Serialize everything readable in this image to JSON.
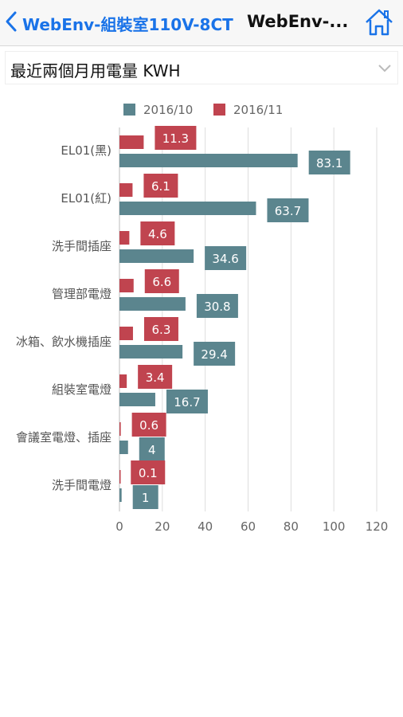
{
  "nav": {
    "back_label": "WebEnv-組裝室110V-8CT",
    "title": "WebEnv-..."
  },
  "selector": {
    "label": "最近兩個月用電量 KWH"
  },
  "chart_data": {
    "type": "bar",
    "orientation": "horizontal",
    "categories": [
      "EL01(黑)",
      "EL01(紅)",
      "洗手間插座",
      "管理部電燈",
      "冰箱、飲水機插座",
      "組裝室電燈",
      "會議室電燈、插座",
      "洗手間電燈"
    ],
    "series": [
      {
        "name": "2016/10",
        "color": "#5b858e",
        "values": [
          83.1,
          63.7,
          34.6,
          30.8,
          29.4,
          16.7,
          4,
          1
        ]
      },
      {
        "name": "2016/11",
        "color": "#c0444f",
        "values": [
          11.3,
          6.1,
          4.6,
          6.6,
          6.3,
          3.4,
          0.6,
          0.1
        ]
      }
    ],
    "xlim": [
      0,
      120
    ],
    "xticks": [
      0,
      20,
      40,
      60,
      80,
      100,
      120
    ],
    "grid": true,
    "legend": "top",
    "data_labels": true
  }
}
